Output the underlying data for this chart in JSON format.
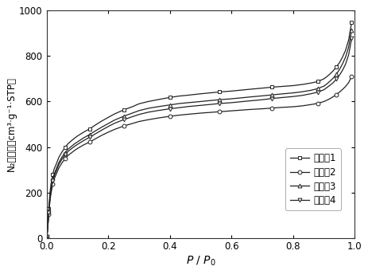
{
  "xlabel": "P / P₀",
  "ylabel": "N₂吸附量（cm³·g⁻¹·STP）",
  "xlim": [
    0.0,
    1.0
  ],
  "ylim": [
    0,
    1000
  ],
  "yticks": [
    0,
    200,
    400,
    600,
    800,
    1000
  ],
  "xticks": [
    0.0,
    0.2,
    0.4,
    0.6,
    0.8,
    1.0
  ],
  "legend_labels": [
    "实施例1",
    "实施例2",
    "实施例3",
    "实施例4"
  ],
  "series1_x": [
    0.0005,
    0.001,
    0.002,
    0.003,
    0.005,
    0.007,
    0.01,
    0.012,
    0.015,
    0.018,
    0.02,
    0.025,
    0.03,
    0.04,
    0.05,
    0.06,
    0.07,
    0.09,
    0.1,
    0.12,
    0.14,
    0.16,
    0.18,
    0.2,
    0.22,
    0.25,
    0.28,
    0.3,
    0.33,
    0.36,
    0.4,
    0.43,
    0.46,
    0.5,
    0.53,
    0.56,
    0.6,
    0.63,
    0.66,
    0.7,
    0.73,
    0.76,
    0.8,
    0.83,
    0.86,
    0.88,
    0.9,
    0.91,
    0.92,
    0.93,
    0.94,
    0.95,
    0.96,
    0.97,
    0.98,
    0.99
  ],
  "series1_y": [
    5,
    10,
    20,
    40,
    80,
    130,
    180,
    210,
    240,
    265,
    280,
    305,
    320,
    355,
    378,
    398,
    415,
    438,
    448,
    465,
    480,
    498,
    515,
    530,
    545,
    563,
    578,
    590,
    600,
    608,
    618,
    624,
    628,
    634,
    638,
    642,
    646,
    650,
    654,
    659,
    663,
    666,
    670,
    675,
    682,
    688,
    700,
    710,
    722,
    735,
    752,
    770,
    795,
    825,
    870,
    950
  ],
  "series2_x": [
    0.0005,
    0.001,
    0.002,
    0.003,
    0.005,
    0.007,
    0.01,
    0.012,
    0.015,
    0.018,
    0.02,
    0.025,
    0.03,
    0.04,
    0.05,
    0.06,
    0.07,
    0.09,
    0.1,
    0.12,
    0.14,
    0.16,
    0.18,
    0.2,
    0.22,
    0.25,
    0.28,
    0.3,
    0.33,
    0.36,
    0.4,
    0.43,
    0.46,
    0.5,
    0.53,
    0.56,
    0.6,
    0.63,
    0.66,
    0.7,
    0.73,
    0.76,
    0.8,
    0.83,
    0.86,
    0.88,
    0.9,
    0.91,
    0.92,
    0.93,
    0.94,
    0.95,
    0.96,
    0.97,
    0.98,
    0.99
  ],
  "series2_y": [
    4,
    8,
    16,
    32,
    65,
    105,
    148,
    175,
    200,
    222,
    238,
    260,
    276,
    308,
    330,
    348,
    363,
    384,
    393,
    409,
    422,
    437,
    452,
    465,
    477,
    492,
    504,
    512,
    520,
    527,
    535,
    540,
    544,
    549,
    552,
    555,
    559,
    562,
    565,
    568,
    571,
    574,
    577,
    581,
    587,
    592,
    600,
    606,
    613,
    621,
    630,
    641,
    653,
    666,
    683,
    710
  ],
  "series3_x": [
    0.0005,
    0.001,
    0.002,
    0.003,
    0.005,
    0.007,
    0.01,
    0.012,
    0.015,
    0.018,
    0.02,
    0.025,
    0.03,
    0.04,
    0.05,
    0.06,
    0.07,
    0.09,
    0.1,
    0.12,
    0.14,
    0.16,
    0.18,
    0.2,
    0.22,
    0.25,
    0.28,
    0.3,
    0.33,
    0.36,
    0.4,
    0.43,
    0.46,
    0.5,
    0.53,
    0.56,
    0.6,
    0.63,
    0.66,
    0.7,
    0.73,
    0.76,
    0.8,
    0.83,
    0.86,
    0.88,
    0.9,
    0.91,
    0.92,
    0.93,
    0.94,
    0.95,
    0.96,
    0.97,
    0.98,
    0.99
  ],
  "series3_y": [
    4,
    9,
    18,
    36,
    73,
    118,
    163,
    193,
    220,
    244,
    260,
    282,
    298,
    332,
    356,
    375,
    391,
    413,
    422,
    440,
    455,
    472,
    488,
    503,
    518,
    535,
    550,
    560,
    570,
    577,
    585,
    591,
    595,
    600,
    604,
    608,
    612,
    616,
    620,
    625,
    629,
    633,
    638,
    643,
    650,
    657,
    668,
    678,
    690,
    703,
    720,
    740,
    765,
    795,
    840,
    915
  ],
  "series4_x": [
    0.0005,
    0.001,
    0.002,
    0.003,
    0.005,
    0.007,
    0.01,
    0.012,
    0.015,
    0.018,
    0.02,
    0.025,
    0.03,
    0.04,
    0.05,
    0.06,
    0.07,
    0.09,
    0.1,
    0.12,
    0.14,
    0.16,
    0.18,
    0.2,
    0.22,
    0.25,
    0.28,
    0.3,
    0.33,
    0.36,
    0.4,
    0.43,
    0.46,
    0.5,
    0.53,
    0.56,
    0.6,
    0.63,
    0.66,
    0.7,
    0.73,
    0.76,
    0.8,
    0.83,
    0.86,
    0.88,
    0.9,
    0.91,
    0.92,
    0.93,
    0.94,
    0.95,
    0.96,
    0.97,
    0.98,
    0.99
  ],
  "series4_y": [
    4,
    8,
    17,
    34,
    68,
    112,
    156,
    184,
    212,
    235,
    250,
    273,
    290,
    323,
    346,
    365,
    381,
    402,
    411,
    428,
    443,
    459,
    475,
    490,
    504,
    520,
    534,
    543,
    553,
    560,
    568,
    573,
    578,
    583,
    587,
    591,
    595,
    599,
    603,
    608,
    613,
    617,
    622,
    627,
    635,
    641,
    652,
    662,
    672,
    683,
    698,
    715,
    737,
    764,
    805,
    878
  ],
  "line_color": "#222222",
  "marker_size": 3.5,
  "linewidth": 0.9,
  "background_color": "#f5f5f0"
}
